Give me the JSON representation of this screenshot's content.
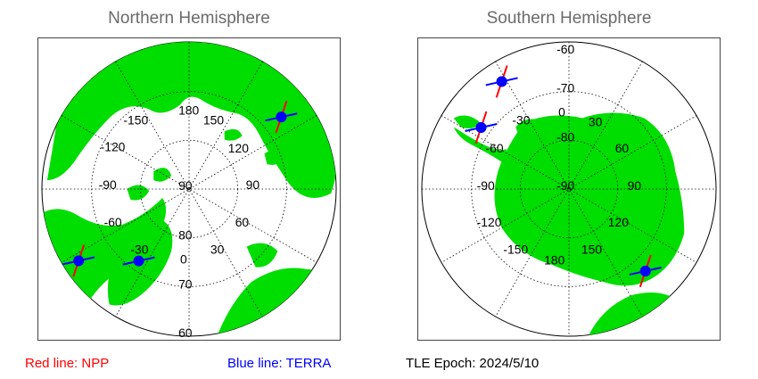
{
  "north": {
    "title": "Northern Hemisphere",
    "lon_labels": [
      "180",
      "150",
      "-150",
      "120",
      "-120",
      "90",
      "-90",
      "60",
      "-60",
      "30",
      "-30",
      "0"
    ],
    "lat_labels": [
      "90",
      "80",
      "70",
      "60"
    ],
    "satellites": [
      {
        "name": "NPP",
        "color": "#ff0000",
        "lat": 66,
        "lon": 128
      },
      {
        "name": "TERRA",
        "color": "#0000ff",
        "lat": 66,
        "lon": 128
      },
      {
        "name": "NPP",
        "color": "#ff0000",
        "lat": 63,
        "lon": -57
      },
      {
        "name": "TERRA",
        "color": "#0000ff",
        "lat": 63,
        "lon": -57
      },
      {
        "name": "TERRA",
        "color": "#0000ff",
        "lat": 72,
        "lon": -35
      }
    ]
  },
  "south": {
    "title": "Southern Hemisphere",
    "lon_labels": [
      "0",
      "30",
      "60",
      "90",
      "120",
      "150",
      "180",
      "-150",
      "-120",
      "-90",
      "-60",
      "-30"
    ],
    "lat_labels": [
      "-60",
      "-70",
      "-80",
      "-90"
    ],
    "satellites": [
      {
        "name": "NPP",
        "color": "#ff0000",
        "lat": -64,
        "lon": -32
      },
      {
        "name": "TERRA",
        "color": "#0000ff",
        "lat": -64,
        "lon": -32
      },
      {
        "name": "NPP",
        "color": "#ff0000",
        "lat": -68,
        "lon": -55
      },
      {
        "name": "TERRA",
        "color": "#0000ff",
        "lat": -68,
        "lon": -55
      },
      {
        "name": "NPP",
        "color": "#ff0000",
        "lat": -67,
        "lon": 137
      },
      {
        "name": "TERRA",
        "color": "#0000ff",
        "lat": -67,
        "lon": 137
      }
    ]
  },
  "legend": {
    "npp": "Red line: NPP",
    "terra": "Blue line: TERRA",
    "epoch": "TLE Epoch: 2024/5/10"
  },
  "colors": {
    "land": "#00dd00",
    "npp": "#ff0000",
    "terra": "#0000ff",
    "grid": "#000000"
  }
}
